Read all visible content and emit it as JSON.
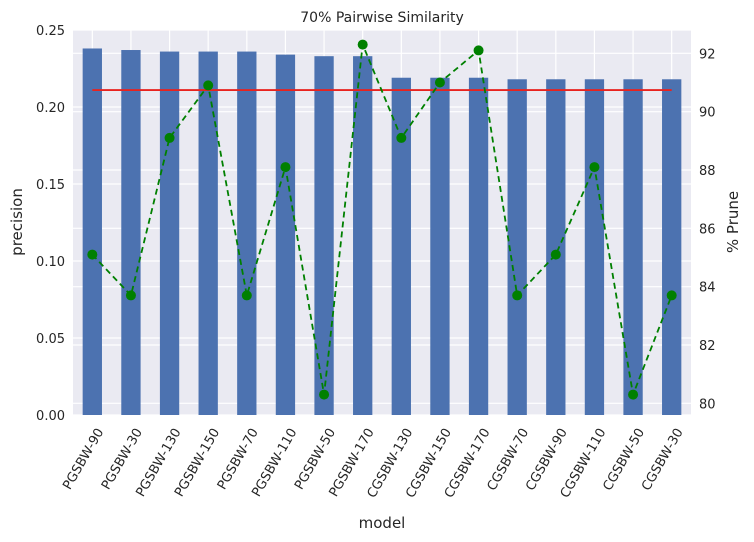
{
  "chart_data": {
    "type": "bar",
    "title": "70% Pairwise Similarity",
    "xlabel": "model",
    "ylabel": "precision",
    "y2label": "% Prune",
    "categories": [
      "PGSBW-90",
      "PGSBW-30",
      "PGSBW-130",
      "PGSBW-150",
      "PGSBW-70",
      "PGSBW-110",
      "PGSBW-50",
      "PGSBW-170",
      "CGSBW-130",
      "CGSBW-150",
      "CGSBW-170",
      "CGSBW-70",
      "CGSBW-90",
      "CGSBW-110",
      "CGSBW-50",
      "CGSBW-30"
    ],
    "series": [
      {
        "axis": "left",
        "kind": "bar",
        "color": "#4c72b0",
        "values": [
          0.238,
          0.237,
          0.236,
          0.236,
          0.236,
          0.234,
          0.233,
          0.233,
          0.219,
          0.219,
          0.219,
          0.218,
          0.218,
          0.218,
          0.218,
          0.218
        ]
      },
      {
        "axis": "left",
        "kind": "line",
        "style": "solid",
        "color": "#e8231f",
        "values": [
          0.211,
          0.211,
          0.211,
          0.211,
          0.211,
          0.211,
          0.211,
          0.211,
          0.211,
          0.211,
          0.211,
          0.211,
          0.211,
          0.211,
          0.211,
          0.211
        ]
      },
      {
        "axis": "right",
        "kind": "line",
        "style": "dashed",
        "marker": "circle",
        "color": "#008000",
        "values": [
          85.1,
          83.7,
          89.1,
          90.9,
          83.7,
          88.1,
          80.3,
          92.3,
          89.1,
          91.0,
          92.1,
          83.7,
          85.1,
          88.1,
          80.3,
          83.7
        ]
      }
    ],
    "ylim": [
      0,
      0.25
    ],
    "yticks": [
      "0.00",
      "0.05",
      "0.10",
      "0.15",
      "0.20",
      "0.25"
    ],
    "y2lim": [
      79.6,
      92.8
    ],
    "y2ticks": [
      "80",
      "82",
      "84",
      "86",
      "88",
      "90",
      "92"
    ],
    "grid": true,
    "background": "#eaeaf2"
  }
}
